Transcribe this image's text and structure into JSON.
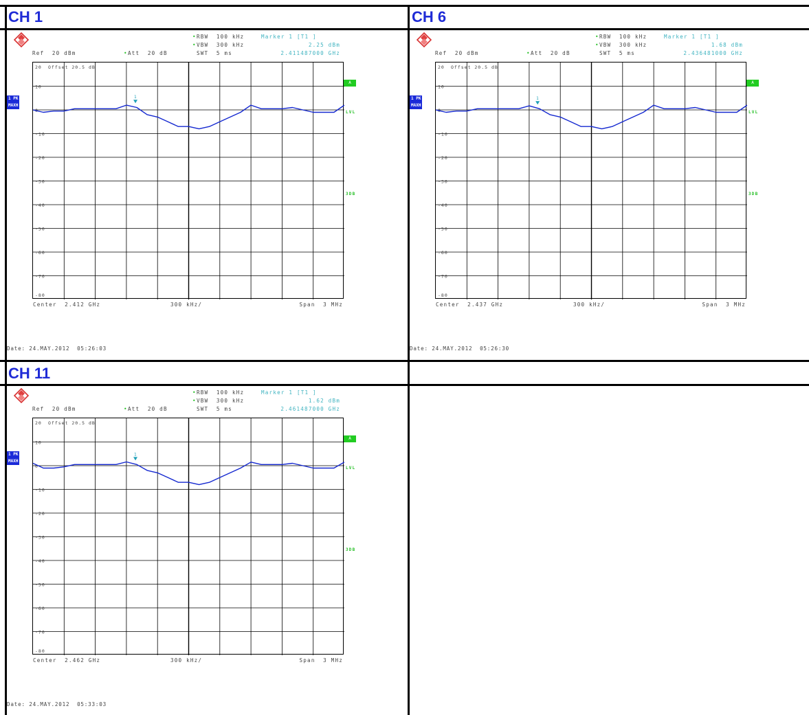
{
  "colors": {
    "title": "#1f2bd6",
    "trace": "#1428d0",
    "grid": "#000000",
    "cyan_text": "#3fb3c0",
    "green_text": "#28c028",
    "tag_bg": "#1a2ad8"
  },
  "icons": [
    "rohde-schwarz-logo-icon",
    "marker-triangle-icon"
  ],
  "panels": [
    {
      "title": "CH 1",
      "rbw": "RBW  100 kHz",
      "vbw": "VBW  300 kHz",
      "swt": "SWT  5 ms",
      "marker_label": "Marker 1 [T1 ]",
      "marker_level": "2.25 dBm",
      "marker_freq": "2.411487000 GHz",
      "ref": "Ref  20 dBm",
      "att": "Att  20 dB",
      "offset": "Offset  20.5 dB",
      "trace_tag": "1 PK",
      "trace_mode": "MAXH",
      "badge_a": "A",
      "badge_lvl": "LVL",
      "badge_3db": "3DB",
      "center": "Center  2.412 GHz",
      "span_div": "300 kHz/",
      "span": "Span  3 MHz",
      "date": "Date: 24.MAY.2012  05:26:03",
      "marker_number": "1",
      "y_ticks": [
        "20",
        "10",
        "0",
        "-10",
        "-20",
        "-30",
        "-40",
        "-50",
        "-60",
        "-70",
        "-80"
      ]
    },
    {
      "title": "CH 6",
      "rbw": "RBW  100 kHz",
      "vbw": "VBW  300 kHz",
      "swt": "SWT  5 ms",
      "marker_label": "Marker 1 [T1 ]",
      "marker_level": "1.68 dBm",
      "marker_freq": "2.436481000 GHz",
      "ref": "Ref  20 dBm",
      "att": "Att  20 dB",
      "offset": "Offset  20.5 dB",
      "trace_tag": "1 PK",
      "trace_mode": "MAXH",
      "badge_a": "A",
      "badge_lvl": "LVL",
      "badge_3db": "3DB",
      "center": "Center  2.437 GHz",
      "span_div": "300 kHz/",
      "span": "Span  3 MHz",
      "date": "Date: 24.MAY.2012  05:26:30",
      "marker_number": "1",
      "y_ticks": [
        "20",
        "10",
        "0",
        "-10",
        "-20",
        "-30",
        "-40",
        "-50",
        "-60",
        "-70",
        "-80"
      ]
    },
    {
      "title": "CH 11",
      "rbw": "RBW  100 kHz",
      "vbw": "VBW  300 kHz",
      "swt": "SWT  5 ms",
      "marker_label": "Marker 1 [T1 ]",
      "marker_level": "1.62 dBm",
      "marker_freq": "2.461487000 GHz",
      "ref": "Ref  20 dBm",
      "att": "Att  20 dB",
      "offset": "Offset  20.5 dB",
      "trace_tag": "1 PK",
      "trace_mode": "MAXH",
      "badge_a": "A",
      "badge_lvl": "LVL",
      "badge_3db": "3DB",
      "center": "Center  2.462 GHz",
      "span_div": "300 kHz/",
      "span": "Span  3 MHz",
      "date": "Date: 24.MAY.2012  05:33:03",
      "marker_number": "1",
      "y_ticks": [
        "20",
        "10",
        "0",
        "-10",
        "-20",
        "-30",
        "-40",
        "-50",
        "-60",
        "-70",
        "-80"
      ]
    }
  ],
  "chart_data": [
    {
      "type": "line",
      "title": "CH 1",
      "xlabel": "",
      "ylabel": "",
      "xlim": [
        2.4105,
        2.4135
      ],
      "ylim": [
        -80,
        20
      ],
      "grid": true,
      "series": [
        {
          "x": [
            2.4105,
            2.4106,
            2.4107,
            2.4108,
            2.4109,
            2.411,
            2.4111,
            2.41115,
            2.4112,
            2.4113,
            2.4114,
            2.4115,
            2.4116,
            2.4117,
            2.4118,
            2.4119,
            2.412,
            2.4121,
            2.4122,
            2.4123,
            2.4124,
            2.4125,
            2.4126,
            2.4127,
            2.4128,
            2.4129,
            2.413,
            2.4131,
            2.4132,
            2.4133,
            2.4134,
            2.4135
          ],
          "y": [
            0,
            -1,
            -0.5,
            -0.5,
            0.5,
            0.5,
            0.5,
            0.5,
            0.5,
            0.5,
            2,
            1,
            -2,
            -3,
            -5,
            -7,
            -7,
            -8,
            -7,
            -5,
            -3,
            -1,
            2,
            0.5,
            0.5,
            0.5,
            1,
            0,
            -1,
            -1,
            -1,
            2
          ]
        }
      ],
      "markers": [
        {
          "x": 2.411487,
          "y": 2.25
        }
      ]
    },
    {
      "type": "line",
      "title": "CH 6",
      "xlabel": "",
      "ylabel": "",
      "xlim": [
        2.4355,
        2.4385
      ],
      "ylim": [
        -80,
        20
      ],
      "grid": true,
      "series": [
        {
          "x": [
            2.4355,
            2.4356,
            2.4357,
            2.4358,
            2.4359,
            2.436,
            2.4361,
            2.43615,
            2.4362,
            2.4363,
            2.4364,
            2.4365,
            2.4366,
            2.4367,
            2.4368,
            2.4369,
            2.437,
            2.4371,
            2.4372,
            2.4373,
            2.4374,
            2.4375,
            2.4376,
            2.4377,
            2.4378,
            2.4379,
            2.438,
            2.4381,
            2.4382,
            2.4383,
            2.4384,
            2.4385
          ],
          "y": [
            0,
            -1,
            -0.5,
            -0.5,
            0.5,
            0.5,
            0.5,
            0.5,
            0.5,
            0.5,
            1.7,
            0.5,
            -2,
            -3,
            -5,
            -7,
            -7,
            -8,
            -7,
            -5,
            -3,
            -1,
            2,
            0.5,
            0.5,
            0.5,
            1,
            0,
            -1,
            -1,
            -1,
            2
          ]
        }
      ],
      "markers": [
        {
          "x": 2.436481,
          "y": 1.68
        }
      ]
    },
    {
      "type": "line",
      "title": "CH 11",
      "xlabel": "",
      "ylabel": "",
      "xlim": [
        2.4605,
        2.4635
      ],
      "ylim": [
        -80,
        20
      ],
      "grid": true,
      "series": [
        {
          "x": [
            2.4605,
            2.4606,
            2.4607,
            2.4608,
            2.4609,
            2.461,
            2.4611,
            2.46115,
            2.4612,
            2.4613,
            2.4614,
            2.4615,
            2.4616,
            2.4617,
            2.4618,
            2.4619,
            2.462,
            2.4621,
            2.4622,
            2.4623,
            2.4624,
            2.4625,
            2.4626,
            2.4627,
            2.4628,
            2.4629,
            2.463,
            2.4631,
            2.4632,
            2.4633,
            2.4634,
            2.4635
          ],
          "y": [
            1,
            -1,
            -1,
            -0.5,
            0.5,
            0.5,
            0.5,
            0.5,
            0.5,
            0.5,
            1.6,
            0.5,
            -2,
            -3,
            -5,
            -7,
            -7,
            -8,
            -7,
            -5,
            -3,
            -1,
            1.5,
            0.5,
            0.5,
            0.5,
            1,
            0,
            -1,
            -1,
            -1,
            1.5
          ]
        }
      ],
      "markers": [
        {
          "x": 2.461487,
          "y": 1.62
        }
      ]
    }
  ]
}
